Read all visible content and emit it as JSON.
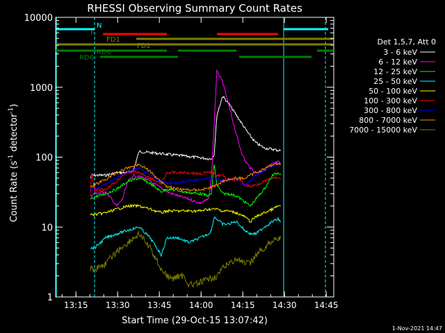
{
  "chart_data": {
    "type": "line",
    "title": "RHESSI Observing Summary Count Rates",
    "xlabel": "Start Time (29-Oct-15 13:07:42)",
    "ylabel_main": "Count Rate (s",
    "ylabel_exp1": "-1",
    "ylabel_mid": " detector",
    "ylabel_exp2": "-1",
    "ylabel_end": ")",
    "footer": "1-Nov-2021 14:47",
    "x_unit": "minutes since 13:07:42",
    "xlim": [
      0,
      100
    ],
    "ylim": [
      1,
      10000
    ],
    "yscale": "log",
    "grid": false,
    "legend_position": "right",
    "x_ticks": [
      {
        "x": 7.3,
        "label": "13:15"
      },
      {
        "x": 22.3,
        "label": "13:30"
      },
      {
        "x": 37.3,
        "label": "13:45"
      },
      {
        "x": 52.3,
        "label": "14:00"
      },
      {
        "x": 67.3,
        "label": "14:15"
      },
      {
        "x": 82.3,
        "label": "14:30"
      },
      {
        "x": 97.3,
        "label": "14:45"
      }
    ],
    "y_ticks": [
      {
        "y": 1,
        "label": "1"
      },
      {
        "y": 10,
        "label": "10"
      },
      {
        "y": 100,
        "label": "100"
      },
      {
        "y": 1000,
        "label": "1000"
      },
      {
        "y": 10000,
        "label": "10000"
      }
    ],
    "legend_header": "Det 1,5,7, Att 0",
    "series": [
      {
        "name": "3 - 6 keV",
        "color": "#ffffff",
        "x": [
          12.5,
          13,
          14,
          18,
          22,
          26,
          28,
          30,
          35,
          40,
          45,
          50,
          55,
          56,
          57,
          58,
          60,
          62,
          65,
          68,
          70,
          72,
          75,
          78,
          80,
          81
        ],
        "y": [
          50,
          55,
          55,
          55,
          60,
          60,
          65,
          120,
          115,
          110,
          105,
          100,
          95,
          95,
          110,
          400,
          750,
          600,
          400,
          260,
          200,
          160,
          135,
          130,
          125,
          125
        ]
      },
      {
        "name": "6 - 12 keV",
        "color": "#ff00ff",
        "x": [
          12.5,
          14,
          18,
          22,
          24,
          26,
          28,
          32,
          36,
          40,
          44,
          48,
          52,
          55,
          56,
          57,
          58,
          60,
          62,
          64,
          66,
          68,
          70,
          72,
          75,
          78,
          80,
          81
        ],
        "y": [
          28,
          30,
          32,
          20,
          25,
          45,
          55,
          50,
          40,
          32,
          28,
          25,
          22,
          25,
          50,
          300,
          1700,
          1200,
          600,
          300,
          150,
          90,
          70,
          60,
          65,
          80,
          85,
          80
        ]
      },
      {
        "name": "12 - 25 keV",
        "color": "#00ff00",
        "x": [
          12.5,
          14,
          18,
          22,
          26,
          30,
          34,
          38,
          40,
          44,
          48,
          52,
          55,
          56,
          57,
          58,
          60,
          62,
          65,
          70,
          75,
          78,
          80,
          81
        ],
        "y": [
          25,
          27,
          30,
          35,
          45,
          50,
          42,
          32,
          35,
          33,
          31,
          30,
          28,
          30,
          80,
          40,
          30,
          30,
          28,
          20,
          35,
          55,
          60,
          58
        ]
      },
      {
        "name": "25 - 50 keV",
        "color": "#00ffff",
        "x": [
          12.5,
          14,
          18,
          22,
          26,
          30,
          34,
          38,
          40,
          44,
          48,
          52,
          55,
          56,
          57,
          58,
          60,
          62,
          65,
          68,
          70,
          72,
          75,
          78,
          80,
          81
        ],
        "y": [
          5,
          5,
          7,
          8,
          9,
          10,
          7,
          4,
          7,
          7,
          6,
          7,
          8,
          9,
          14,
          13,
          11,
          11,
          12,
          9,
          8,
          8,
          10,
          12,
          13,
          12
        ]
      },
      {
        "name": "50 - 100 keV",
        "color": "#ffff00",
        "x": [
          12.5,
          14,
          18,
          22,
          26,
          30,
          34,
          38,
          40,
          44,
          48,
          52,
          55,
          58,
          60,
          62,
          65,
          68,
          70,
          72,
          75,
          78,
          80,
          81
        ],
        "y": [
          15,
          15,
          16,
          18,
          20,
          20,
          18,
          16,
          17,
          17,
          17,
          17,
          18,
          18,
          17,
          17,
          16,
          14,
          12,
          14,
          16,
          18,
          20,
          20
        ]
      },
      {
        "name": "100 - 300 keV",
        "color": "#ff0000",
        "x": [
          12.5,
          13,
          14,
          18,
          22,
          24,
          26,
          28,
          30,
          32,
          34,
          36,
          38,
          40,
          44,
          48,
          52,
          55,
          56,
          57,
          58,
          60,
          62,
          64,
          66,
          68,
          70,
          72,
          75,
          78,
          80,
          81
        ],
        "y": [
          30,
          60,
          33,
          35,
          45,
          55,
          60,
          62,
          60,
          55,
          50,
          45,
          42,
          60,
          60,
          60,
          58,
          60,
          62,
          60,
          55,
          55,
          48,
          47,
          48,
          40,
          38,
          40,
          45,
          50,
          50,
          48
        ]
      },
      {
        "name": "300 - 800 keV",
        "color": "#0000ff",
        "x": [
          12.5,
          14,
          18,
          22,
          26,
          30,
          34,
          38,
          40,
          44,
          48,
          52,
          55,
          58,
          60,
          62,
          65,
          68,
          70,
          72,
          75,
          78,
          80,
          81
        ],
        "y": [
          35,
          35,
          40,
          50,
          62,
          70,
          55,
          45,
          42,
          43,
          45,
          48,
          50,
          48,
          46,
          48,
          50,
          40,
          45,
          55,
          65,
          75,
          80,
          78
        ]
      },
      {
        "name": "800 - 7000 keV",
        "color": "#ff8c00",
        "x": [
          12.5,
          14,
          18,
          22,
          26,
          28,
          30,
          32,
          34,
          36,
          38,
          40,
          44,
          48,
          52,
          55,
          58,
          60,
          62,
          65,
          68,
          70,
          72,
          75,
          78,
          80,
          81
        ],
        "y": [
          38,
          40,
          48,
          60,
          70,
          75,
          78,
          72,
          62,
          52,
          45,
          38,
          35,
          34,
          34,
          36,
          40,
          45,
          48,
          50,
          50,
          55,
          60,
          68,
          78,
          82,
          80
        ]
      },
      {
        "name": "7000 - 15000 keV",
        "color": "#808000",
        "x": [
          12.5,
          14,
          18,
          22,
          26,
          30,
          34,
          38,
          40,
          42,
          44,
          46,
          48,
          50,
          52,
          55,
          58,
          60,
          62,
          65,
          68,
          70,
          72,
          75,
          78,
          80,
          81
        ],
        "y": [
          2.5,
          2.5,
          3,
          4.5,
          6,
          8,
          5,
          2.5,
          2,
          1.8,
          2,
          2,
          1.5,
          1.5,
          1.6,
          1.8,
          2,
          2.5,
          3,
          3.5,
          3,
          3,
          4,
          5,
          6.5,
          7,
          7
        ]
      }
    ],
    "flag_bars": [
      {
        "label": "N",
        "color": "#00ffff",
        "segments": [
          [
            0,
            14
          ],
          [
            82,
            98
          ]
        ]
      },
      {
        "label": "F",
        "color": "#ff0000",
        "segments": [
          [
            17,
            40
          ],
          [
            58,
            80
          ]
        ]
      },
      {
        "label": "FD1",
        "color": "#808000",
        "segments": [
          [
            29,
            100
          ]
        ]
      },
      {
        "label": "FD2",
        "color": "#808000",
        "segments": [
          [
            0,
            28
          ],
          [
            28,
            100
          ]
        ]
      },
      {
        "label": "RD0",
        "color": "#008000",
        "segments": [
          [
            0,
            14
          ],
          [
            14,
            40
          ],
          [
            44,
            65
          ],
          [
            94,
            100
          ]
        ]
      },
      {
        "label": "RD6",
        "color": "#008000",
        "segments": [
          [
            16,
            44
          ],
          [
            66,
            92
          ]
        ]
      }
    ],
    "cyan_dashed_x": [
      14.0,
      97.0
    ],
    "cyan_solid_x": [
      0.3,
      82.0
    ]
  }
}
